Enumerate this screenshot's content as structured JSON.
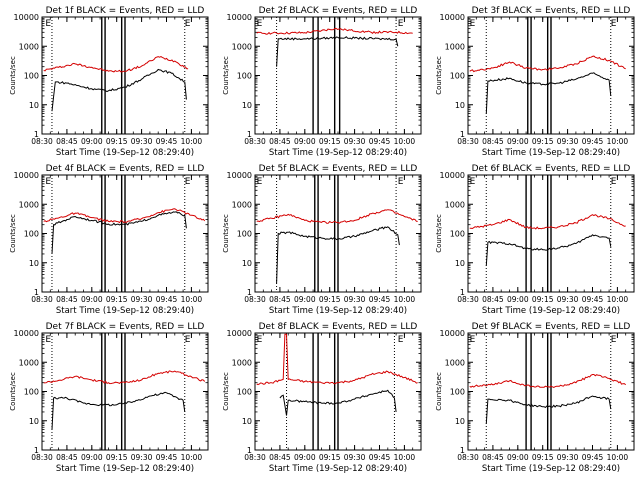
{
  "figure": {
    "colors": {
      "events": "#000000",
      "lld": "#d40000",
      "axes": "#000000",
      "background": "#ffffff"
    }
  },
  "chart_data": [
    {
      "type": "line",
      "title": "Det 1f BLACK = Events, RED = LLD",
      "xlabel": "Start Time (19-Sep-12 08:29:40)",
      "ylabel": "Counts/sec",
      "xlim": [
        "08:30",
        "10:10"
      ],
      "ylim": [
        1,
        10000
      ],
      "yscale": "log",
      "x_ticks": [
        "08:30",
        "08:45",
        "09:00",
        "09:15",
        "09:30",
        "09:45",
        "10:00"
      ],
      "y_ticks": [
        "1",
        "10",
        "100",
        "1000",
        "10000"
      ],
      "dotted_markers": [
        "08:36",
        "09:56"
      ],
      "solid_markers": [
        "09:06",
        "09:08",
        "09:18",
        "09:20"
      ],
      "annotations": [
        {
          "text": "E",
          "x": "08:32"
        },
        {
          "text": "E",
          "x": "09:56"
        }
      ],
      "series": [
        {
          "key": "lld",
          "x": [
            "08:31",
            "08:40",
            "08:50",
            "09:00",
            "09:10",
            "09:20",
            "09:30",
            "09:40",
            "09:50",
            "09:58"
          ],
          "y": [
            150,
            190,
            250,
            190,
            140,
            140,
            210,
            440,
            310,
            170
          ]
        },
        {
          "key": "events",
          "x": [
            "08:36",
            "08:38",
            "08:45",
            "09:00",
            "09:10",
            "09:20",
            "09:30",
            "09:40",
            "09:48",
            "09:56",
            "09:57"
          ],
          "y": [
            6,
            60,
            55,
            35,
            30,
            40,
            75,
            160,
            120,
            60,
            15
          ]
        }
      ]
    },
    {
      "type": "line",
      "title": "Det 2f BLACK = Events, RED = LLD",
      "xlabel": "Start Time (19-Sep-12 08:29:40)",
      "ylabel": "Counts/sec",
      "xlim": [
        "08:30",
        "10:10"
      ],
      "ylim": [
        1,
        10000
      ],
      "yscale": "log",
      "x_ticks": [
        "08:30",
        "08:45",
        "09:00",
        "09:15",
        "09:30",
        "09:45",
        "10:00"
      ],
      "y_ticks": [
        "1",
        "10",
        "100",
        "1000",
        "10000"
      ],
      "dotted_markers": [
        "08:43",
        "09:55"
      ],
      "solid_markers": [
        "09:05",
        "09:08",
        "09:18",
        "09:21"
      ],
      "annotations": [
        {
          "text": "E",
          "x": "08:31"
        },
        {
          "text": "E",
          "x": "09:56"
        }
      ],
      "series": [
        {
          "key": "lld",
          "x": [
            "08:31",
            "08:45",
            "09:00",
            "09:10",
            "09:18",
            "09:25",
            "09:40",
            "09:55",
            "10:05"
          ],
          "y": [
            2800,
            2800,
            2900,
            3400,
            4000,
            3600,
            3000,
            3000,
            2800
          ]
        },
        {
          "key": "events",
          "x": [
            "08:43",
            "08:44",
            "09:00",
            "09:10",
            "09:20",
            "09:30",
            "09:45",
            "09:55",
            "09:56"
          ],
          "y": [
            200,
            1800,
            1800,
            1850,
            2000,
            1900,
            1800,
            1750,
            1000
          ]
        }
      ]
    },
    {
      "type": "line",
      "title": "Det 3f BLACK = Events, RED = LLD",
      "xlabel": "Start Time (19-Sep-12 08:29:40)",
      "ylabel": "Counts/sec",
      "xlim": [
        "08:30",
        "10:10"
      ],
      "ylim": [
        1,
        10000
      ],
      "yscale": "log",
      "x_ticks": [
        "08:30",
        "08:45",
        "09:00",
        "09:15",
        "09:30",
        "09:45",
        "10:00"
      ],
      "y_ticks": [
        "1",
        "10",
        "100",
        "1000",
        "10000"
      ],
      "dotted_markers": [
        "08:41",
        "09:56"
      ],
      "solid_markers": [
        "09:06",
        "09:08",
        "09:18",
        "09:20"
      ],
      "annotations": [
        {
          "text": "E",
          "x": "08:31"
        },
        {
          "text": "E",
          "x": "09:56"
        }
      ],
      "series": [
        {
          "key": "lld",
          "x": [
            "08:31",
            "08:45",
            "08:55",
            "09:05",
            "09:15",
            "09:25",
            "09:35",
            "09:45",
            "09:55",
            "10:05"
          ],
          "y": [
            140,
            180,
            290,
            180,
            160,
            180,
            250,
            450,
            330,
            170
          ]
        },
        {
          "key": "events",
          "x": [
            "08:41",
            "08:42",
            "08:55",
            "09:05",
            "09:15",
            "09:25",
            "09:35",
            "09:45",
            "09:55",
            "09:56"
          ],
          "y": [
            5,
            65,
            80,
            55,
            50,
            55,
            75,
            120,
            70,
            20
          ]
        }
      ]
    },
    {
      "type": "line",
      "title": "Det 4f BLACK = Events, RED = LLD",
      "xlabel": "Start Time (19-Sep-12 08:29:40)",
      "ylabel": "Counts/sec",
      "xlim": [
        "08:30",
        "10:10"
      ],
      "ylim": [
        1,
        10000
      ],
      "yscale": "log",
      "x_ticks": [
        "08:30",
        "08:45",
        "09:00",
        "09:15",
        "09:30",
        "09:45",
        "10:00"
      ],
      "y_ticks": [
        "1",
        "10",
        "100",
        "1000",
        "10000"
      ],
      "dotted_markers": [
        "08:36",
        "09:56"
      ],
      "solid_markers": [
        "09:06",
        "09:08",
        "09:18",
        "09:20"
      ],
      "annotations": [
        {
          "text": "E",
          "x": "08:32"
        },
        {
          "text": "E",
          "x": "09:56"
        }
      ],
      "series": [
        {
          "key": "lld",
          "x": [
            "08:31",
            "08:40",
            "08:50",
            "09:00",
            "09:10",
            "09:20",
            "09:30",
            "09:40",
            "09:50",
            "10:00",
            "10:08"
          ],
          "y": [
            260,
            340,
            500,
            350,
            260,
            250,
            320,
            520,
            700,
            420,
            270
          ]
        },
        {
          "key": "events",
          "x": [
            "08:36",
            "08:37",
            "08:45",
            "08:50",
            "09:00",
            "09:10",
            "09:20",
            "09:30",
            "09:40",
            "09:50",
            "09:56",
            "09:57"
          ],
          "y": [
            20,
            200,
            300,
            380,
            280,
            210,
            200,
            260,
            420,
            540,
            420,
            150
          ]
        }
      ]
    },
    {
      "type": "line",
      "title": "Det 5f BLACK = Events, RED = LLD",
      "xlabel": "Start Time (19-Sep-12 08:29:40)",
      "ylabel": "Counts/sec",
      "xlim": [
        "08:30",
        "10:10"
      ],
      "ylim": [
        1,
        10000
      ],
      "yscale": "log",
      "x_ticks": [
        "08:30",
        "08:45",
        "09:00",
        "09:15",
        "09:30",
        "09:45",
        "10:00"
      ],
      "y_ticks": [
        "1",
        "10",
        "100",
        "1000",
        "10000"
      ],
      "dotted_markers": [
        "08:43",
        "09:55"
      ],
      "solid_markers": [
        "09:06",
        "09:08",
        "09:18",
        "09:20"
      ],
      "annotations": [
        {
          "text": "E",
          "x": "08:31"
        },
        {
          "text": "E",
          "x": "09:56"
        }
      ],
      "series": [
        {
          "key": "lld",
          "x": [
            "08:31",
            "08:40",
            "08:50",
            "09:00",
            "09:10",
            "09:20",
            "09:30",
            "09:40",
            "09:50",
            "10:00",
            "10:08"
          ],
          "y": [
            260,
            330,
            450,
            280,
            240,
            240,
            280,
            470,
            650,
            380,
            260
          ]
        },
        {
          "key": "events",
          "x": [
            "08:43",
            "08:44",
            "08:50",
            "09:00",
            "09:10",
            "09:20",
            "09:30",
            "09:40",
            "09:50",
            "09:56",
            "09:57"
          ],
          "y": [
            2,
            100,
            110,
            80,
            70,
            65,
            80,
            120,
            170,
            90,
            40
          ]
        }
      ]
    },
    {
      "type": "line",
      "title": "Det 6f BLACK = Events, RED = LLD",
      "xlabel": "Start Time (19-Sep-12 08:29:40)",
      "ylabel": "Counts/sec",
      "xlim": [
        "08:30",
        "10:10"
      ],
      "ylim": [
        1,
        10000
      ],
      "yscale": "log",
      "x_ticks": [
        "08:30",
        "08:45",
        "09:00",
        "09:15",
        "09:30",
        "09:45",
        "10:00"
      ],
      "y_ticks": [
        "1",
        "10",
        "100",
        "1000",
        "10000"
      ],
      "dotted_markers": [
        "08:41",
        "09:56"
      ],
      "solid_markers": [
        "09:05",
        "09:08",
        "09:18",
        "09:20"
      ],
      "annotations": [
        {
          "text": "E",
          "x": "08:31"
        },
        {
          "text": "E",
          "x": "09:56"
        }
      ],
      "series": [
        {
          "key": "lld",
          "x": [
            "08:31",
            "08:45",
            "08:55",
            "09:05",
            "09:15",
            "09:25",
            "09:35",
            "09:45",
            "09:55",
            "10:05"
          ],
          "y": [
            150,
            200,
            300,
            160,
            150,
            170,
            230,
            440,
            320,
            180
          ]
        },
        {
          "key": "events",
          "x": [
            "08:41",
            "08:42",
            "08:55",
            "09:05",
            "09:15",
            "09:25",
            "09:35",
            "09:45",
            "09:55",
            "09:56"
          ],
          "y": [
            8,
            50,
            45,
            30,
            28,
            32,
            45,
            90,
            70,
            35
          ]
        }
      ]
    },
    {
      "type": "line",
      "title": "Det 7f BLACK = Events, RED = LLD",
      "xlabel": "Start Time (19-Sep-12 08:29:40)",
      "ylabel": "Counts/sec",
      "xlim": [
        "08:30",
        "10:10"
      ],
      "ylim": [
        1,
        10000
      ],
      "yscale": "log",
      "x_ticks": [
        "08:30",
        "08:45",
        "09:00",
        "09:15",
        "09:30",
        "09:45",
        "10:00"
      ],
      "y_ticks": [
        "1",
        "10",
        "100",
        "1000",
        "10000"
      ],
      "dotted_markers": [
        "08:36",
        "09:56"
      ],
      "solid_markers": [
        "09:06",
        "09:08",
        "09:18",
        "09:20"
      ],
      "annotations": [
        {
          "text": "E",
          "x": "08:32"
        },
        {
          "text": "E",
          "x": "09:56"
        }
      ],
      "series": [
        {
          "key": "lld",
          "x": [
            "08:31",
            "08:40",
            "08:50",
            "09:00",
            "09:10",
            "09:20",
            "09:30",
            "09:40",
            "09:50",
            "10:00",
            "10:08"
          ],
          "y": [
            200,
            240,
            330,
            250,
            200,
            200,
            250,
            420,
            500,
            320,
            220
          ]
        },
        {
          "key": "events",
          "x": [
            "08:36",
            "08:37",
            "08:45",
            "08:55",
            "09:05",
            "09:15",
            "09:25",
            "09:35",
            "09:45",
            "09:55",
            "09:56"
          ],
          "y": [
            5,
            60,
            60,
            40,
            35,
            35,
            45,
            70,
            90,
            50,
            20
          ]
        }
      ]
    },
    {
      "type": "line",
      "title": "Det 8f BLACK = Events, RED = LLD",
      "xlabel": "Start Time (19-Sep-12 08:29:40)",
      "ylabel": "Counts/sec",
      "xlim": [
        "08:30",
        "10:10"
      ],
      "ylim": [
        1,
        10000
      ],
      "yscale": "log",
      "x_ticks": [
        "08:30",
        "08:45",
        "09:00",
        "09:15",
        "09:30",
        "09:45",
        "10:00"
      ],
      "y_ticks": [
        "1",
        "10",
        "100",
        "1000",
        "10000"
      ],
      "dotted_markers": [
        "08:49",
        "09:54"
      ],
      "solid_markers": [
        "09:05",
        "09:08",
        "09:18",
        "09:20"
      ],
      "annotations": [
        {
          "text": "E",
          "x": "08:31"
        },
        {
          "text": "E",
          "x": "09:56"
        }
      ],
      "series": [
        {
          "key": "lld",
          "x": [
            "08:31",
            "08:40",
            "08:47",
            "08:48",
            "08:49",
            "08:50",
            "09:00",
            "09:10",
            "09:20",
            "09:30",
            "09:40",
            "09:50",
            "10:00",
            "10:08"
          ],
          "y": [
            180,
            200,
            260,
            9000,
            9000,
            260,
            220,
            200,
            200,
            240,
            380,
            480,
            300,
            200
          ]
        },
        {
          "key": "events",
          "x": [
            "08:45",
            "08:46",
            "08:47",
            "08:49",
            "08:50",
            "09:00",
            "09:10",
            "09:20",
            "09:30",
            "09:40",
            "09:50",
            "09:54",
            "09:55"
          ],
          "y": [
            60,
            70,
            75,
            15,
            50,
            45,
            40,
            40,
            55,
            80,
            110,
            60,
            20
          ]
        }
      ]
    },
    {
      "type": "line",
      "title": "Det 9f BLACK = Events, RED = LLD",
      "xlabel": "Start Time (19-Sep-12 08:29:40)",
      "ylabel": "Counts/sec",
      "xlim": [
        "08:30",
        "10:10"
      ],
      "ylim": [
        1,
        10000
      ],
      "yscale": "log",
      "x_ticks": [
        "08:30",
        "08:45",
        "09:00",
        "09:15",
        "09:30",
        "09:45",
        "10:00"
      ],
      "y_ticks": [
        "1",
        "10",
        "100",
        "1000",
        "10000"
      ],
      "dotted_markers": [
        "08:41",
        "09:56"
      ],
      "solid_markers": [
        "09:05",
        "09:08",
        "09:18",
        "09:20"
      ],
      "annotations": [
        {
          "text": "E",
          "x": "08:31"
        },
        {
          "text": "E",
          "x": "09:56"
        }
      ],
      "series": [
        {
          "key": "lld",
          "x": [
            "08:31",
            "08:45",
            "08:55",
            "09:05",
            "09:15",
            "09:25",
            "09:35",
            "09:45",
            "09:55",
            "10:05"
          ],
          "y": [
            150,
            170,
            230,
            160,
            140,
            150,
            200,
            380,
            280,
            170
          ]
        },
        {
          "key": "events",
          "x": [
            "08:41",
            "08:42",
            "08:55",
            "09:05",
            "09:15",
            "09:25",
            "09:35",
            "09:45",
            "09:55",
            "09:56"
          ],
          "y": [
            8,
            55,
            50,
            35,
            30,
            32,
            40,
            70,
            55,
            25
          ]
        }
      ]
    }
  ]
}
